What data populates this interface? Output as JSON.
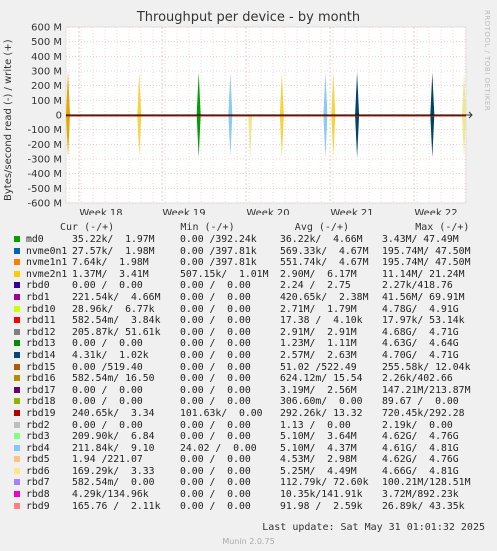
{
  "title": "Throughput per device - by month",
  "side_label": "RRDTOOL / TOBI OETIKER",
  "ylabel": "Bytes/second read (-) / write (+)",
  "legend_header": "Cur (-/+)           Min (-/+)          Avg (-/+)           Max (-/+)",
  "last_update": "Last update: Sat May 31 01:01:32 2025",
  "footer": "Munin 2.0.75",
  "chart_data": {
    "type": "line",
    "title": "Throughput per device - by month",
    "ylabel": "Bytes/second read (-) / write (+)",
    "ylim": [
      -600000000,
      600000000
    ],
    "y_ticks": [
      {
        "v": 600000000,
        "label": "600 M"
      },
      {
        "v": 500000000,
        "label": "500 M"
      },
      {
        "v": 400000000,
        "label": "400 M"
      },
      {
        "v": 300000000,
        "label": "300 M"
      },
      {
        "v": 200000000,
        "label": "200 M"
      },
      {
        "v": 100000000,
        "label": "100 M"
      },
      {
        "v": 0,
        "label": "0"
      },
      {
        "v": -100000000,
        "label": "-100 M"
      },
      {
        "v": -200000000,
        "label": "-200 M"
      },
      {
        "v": -300000000,
        "label": "-300 M"
      },
      {
        "v": -400000000,
        "label": "-400 M"
      },
      {
        "v": -500000000,
        "label": "-500 M"
      },
      {
        "v": -600000000,
        "label": "-600 M"
      }
    ],
    "x_ticks": [
      "Week 18",
      "Week 19",
      "Week 20",
      "Week 21",
      "Week 22"
    ],
    "grid": true,
    "spikes": [
      {
        "x": 0.0,
        "up": 300000000,
        "down": -290000000,
        "color": "#e6a600"
      },
      {
        "x": 0.18,
        "up": 290000000,
        "down": -280000000,
        "color": "#f5d442"
      },
      {
        "x": 0.33,
        "up": 290000000,
        "down": -290000000,
        "color": "#00a000"
      },
      {
        "x": 0.41,
        "up": 290000000,
        "down": -280000000,
        "color": "#88ccee"
      },
      {
        "x": 0.46,
        "up": 0,
        "down": -290000000,
        "color": "#f0e68c"
      },
      {
        "x": 0.54,
        "up": 290000000,
        "down": -290000000,
        "color": "#f5d442"
      },
      {
        "x": 0.65,
        "up": 290000000,
        "down": -290000000,
        "color": "#88ccee"
      },
      {
        "x": 0.67,
        "up": 290000000,
        "down": -290000000,
        "color": "#f5d442"
      },
      {
        "x": 0.73,
        "up": 290000000,
        "down": -290000000,
        "color": "#004466"
      },
      {
        "x": 0.92,
        "up": 290000000,
        "down": -290000000,
        "color": "#004466"
      },
      {
        "x": 1.0,
        "up": 290000000,
        "down": -290000000,
        "color": "#f0e68c"
      }
    ]
  },
  "legend": [
    {
      "name": "md0",
      "color": "#00a000",
      "cur": "35.22k/  1.97M",
      "min": "0.00 /392.24k",
      "avg": "36.22k/  4.66M",
      "max": "3.43M/ 47.49M"
    },
    {
      "name": "nvme0n1",
      "color": "#0066b3",
      "cur": "27.57k/  1.98M",
      "min": "0.00 /397.81k",
      "avg": "569.33k/  4.67M",
      "max": "195.74M/ 47.50M"
    },
    {
      "name": "nvme1n1",
      "color": "#ff8000",
      "cur": "7.64k/  1.98M",
      "min": "0.00 /397.81k",
      "avg": "551.74k/  4.67M",
      "max": "195.74M/ 47.50M"
    },
    {
      "name": "nvme2n1",
      "color": "#ffcc00",
      "cur": "1.37M/  3.41M",
      "min": "507.15k/  1.01M",
      "avg": "2.90M/  6.17M",
      "max": "11.14M/ 21.24M"
    },
    {
      "name": "rbd0",
      "color": "#330099",
      "cur": "0.00 /  0.00",
      "min": "0.00 /  0.00",
      "avg": "2.24 /  2.75",
      "max": "2.27k/418.76"
    },
    {
      "name": "rbd1",
      "color": "#990099",
      "cur": "221.54k/  4.66M",
      "min": "0.00 /  0.00",
      "avg": "420.65k/  2.38M",
      "max": "41.56M/ 69.91M"
    },
    {
      "name": "rbd10",
      "color": "#ccff00",
      "cur": "28.96k/  6.77k",
      "min": "0.00 /  0.00",
      "avg": "2.71M/  1.79M",
      "max": "4.78G/  4.91G"
    },
    {
      "name": "rbd11",
      "color": "#ff0000",
      "cur": "582.54m/  3.84k",
      "min": "0.00 /  0.00",
      "avg": "17.38 /  4.10k",
      "max": "17.97k/ 53.14k"
    },
    {
      "name": "rbd12",
      "color": "#808080",
      "cur": "205.87k/ 51.61k",
      "min": "0.00 /  0.00",
      "avg": "2.91M/  2.91M",
      "max": "4.68G/  4.71G"
    },
    {
      "name": "rbd13",
      "color": "#008f00",
      "cur": "0.00 /  0.00",
      "min": "0.00 /  0.00",
      "avg": "1.23M/  1.11M",
      "max": "4.63G/  4.64G"
    },
    {
      "name": "rbd14",
      "color": "#00487d",
      "cur": "4.31k/  1.02k",
      "min": "0.00 /  0.00",
      "avg": "2.57M/  2.63M",
      "max": "4.70G/  4.71G"
    },
    {
      "name": "rbd15",
      "color": "#b35a00",
      "cur": "0.00 /519.40",
      "min": "0.00 /  0.00",
      "avg": "51.02 /522.49",
      "max": "255.58k/ 12.04k"
    },
    {
      "name": "rbd16",
      "color": "#b38f00",
      "cur": "582.54m/ 16.50",
      "min": "0.00 /  0.00",
      "avg": "624.12m/ 15.54",
      "max": "2.26k/402.66"
    },
    {
      "name": "rbd17",
      "color": "#6b006b",
      "cur": "0.00 /  0.00",
      "min": "0.00 /  0.00",
      "avg": "3.19M/  2.56M",
      "max": "147.21M/213.87M"
    },
    {
      "name": "rbd18",
      "color": "#8fb300",
      "cur": "0.00 /  0.00",
      "min": "0.00 /  0.00",
      "avg": "306.60m/  0.00",
      "max": "89.67 /  0.00"
    },
    {
      "name": "rbd19",
      "color": "#b30000",
      "cur": "240.65k/  3.34",
      "min": "101.63k/  0.00",
      "avg": "292.26k/ 13.32",
      "max": "720.45k/292.28"
    },
    {
      "name": "rbd2",
      "color": "#bebebe",
      "cur": "0.00 /  0.00",
      "min": "0.00 /  0.00",
      "avg": "1.13 /  0.00",
      "max": "2.19k/  0.00"
    },
    {
      "name": "rbd3",
      "color": "#80ff80",
      "cur": "209.90k/  6.84",
      "min": "0.00 /  0.00",
      "avg": "5.10M/  3.64M",
      "max": "4.62G/  4.76G"
    },
    {
      "name": "rbd4",
      "color": "#80c9ff",
      "cur": "211.84k/  9.10",
      "min": "24.02 /  0.00",
      "avg": "5.10M/  4.37M",
      "max": "4.61G/  4.81G"
    },
    {
      "name": "rbd5",
      "color": "#ffc080",
      "cur": "1.94 /221.07",
      "min": "0.00 /  0.00",
      "avg": "4.53M/  2.98M",
      "max": "4.62G/  4.76G"
    },
    {
      "name": "rbd6",
      "color": "#ffe680",
      "cur": "169.29k/  3.33",
      "min": "0.00 /  0.00",
      "avg": "5.25M/  4.49M",
      "max": "4.66G/  4.81G"
    },
    {
      "name": "rbd7",
      "color": "#aa80ff",
      "cur": "582.54m/  0.00",
      "min": "0.00 /  0.00",
      "avg": "112.79k/ 72.60k",
      "max": "100.21M/128.51M"
    },
    {
      "name": "rbd8",
      "color": "#ee00cc",
      "cur": "4.29k/134.96k",
      "min": "0.00 /  0.00",
      "avg": "10.35k/141.91k",
      "max": "3.72M/892.23k"
    },
    {
      "name": "rbd9",
      "color": "#ff8080",
      "cur": "165.76 /  2.11k",
      "min": "0.00 /  0.00",
      "avg": "91.98 /  2.59k",
      "max": "26.89k/ 43.35k"
    }
  ]
}
